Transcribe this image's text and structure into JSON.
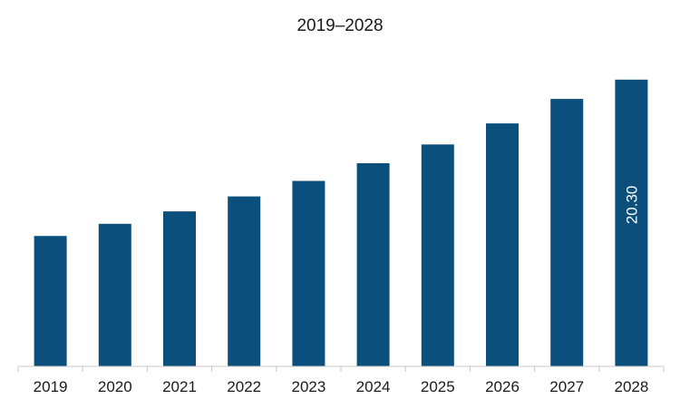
{
  "chart_data": {
    "type": "bar",
    "title": "2019–2028",
    "categories": [
      "2019",
      "2020",
      "2021",
      "2022",
      "2023",
      "2024",
      "2025",
      "2026",
      "2027",
      "2028"
    ],
    "values": [
      9.23,
      10.09,
      10.97,
      12.03,
      13.13,
      14.38,
      15.71,
      17.2,
      18.93,
      20.3
    ],
    "data_labels": [
      {
        "category": "2028",
        "text": "20.30"
      }
    ],
    "ylim": [
      0,
      20.8
    ],
    "xlabel": "",
    "ylabel": "",
    "grid": false,
    "legend": "none",
    "colors": {
      "bar": "#0b4f7c",
      "axis": "#c8c8c8",
      "text": "#1a1a1a",
      "data_label": "#ffffff"
    }
  }
}
